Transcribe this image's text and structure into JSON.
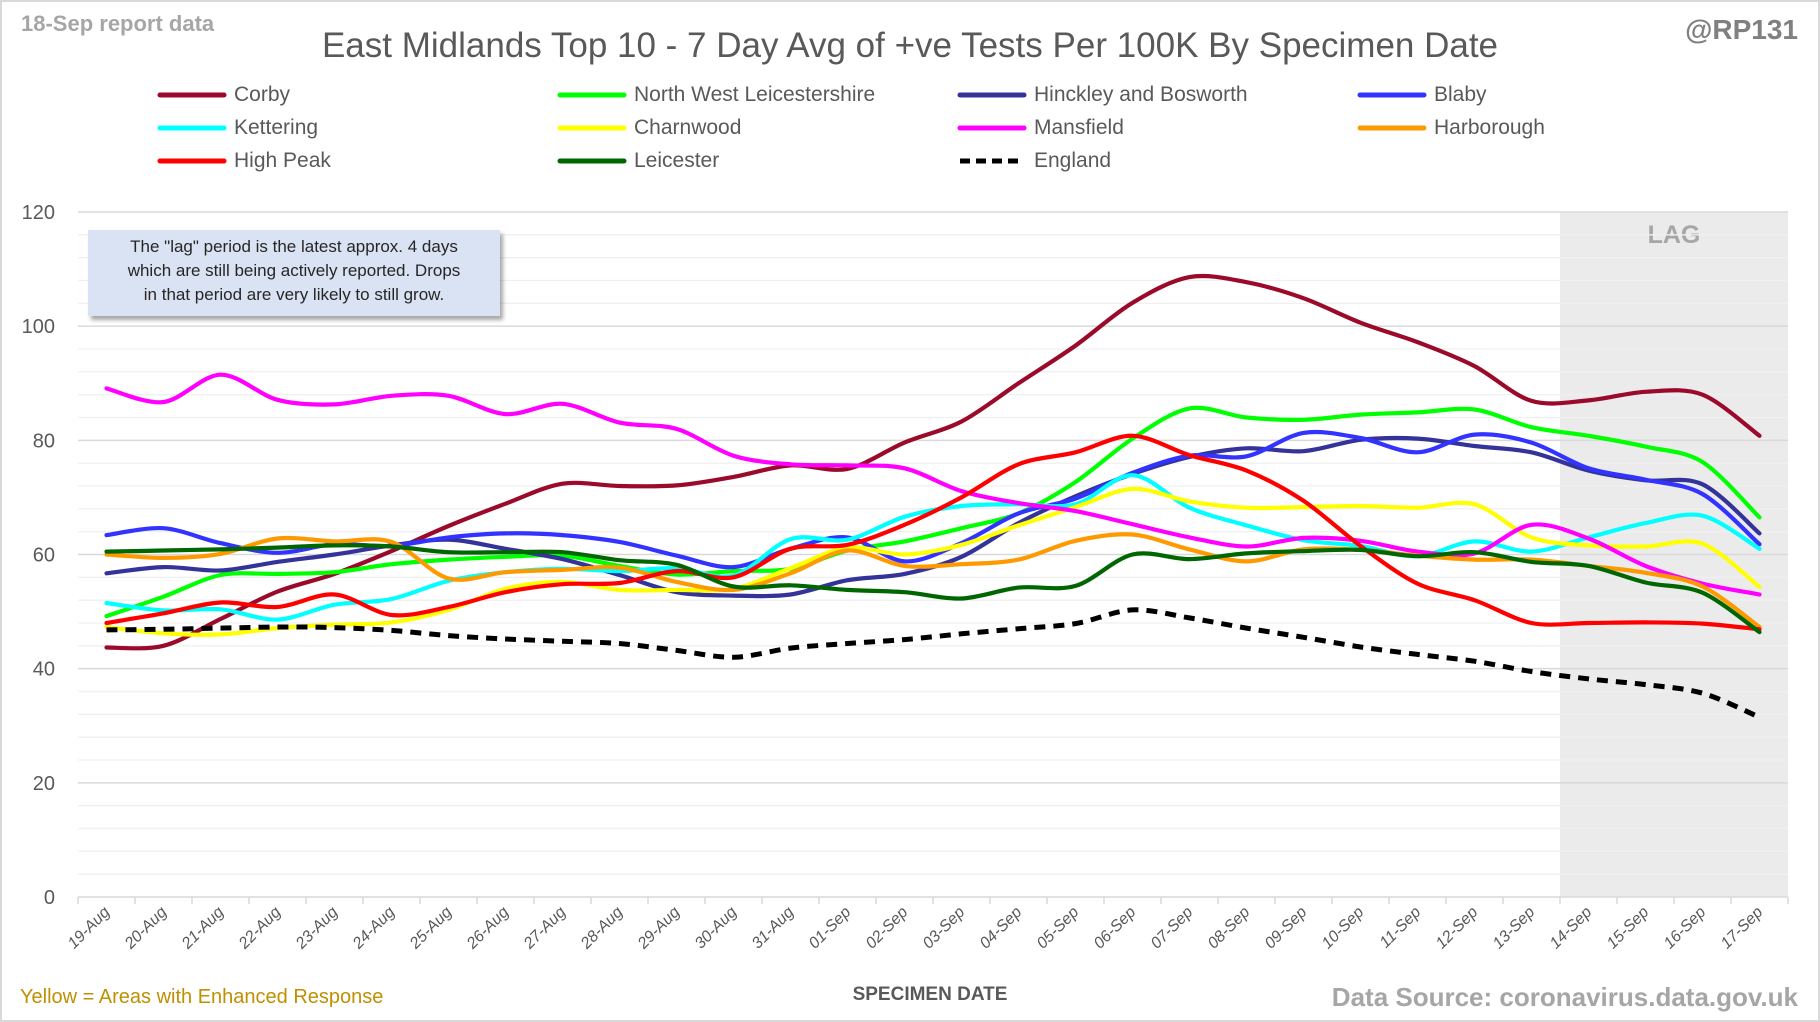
{
  "header": {
    "report_tag": "18-Sep report data",
    "handle": "@RP131"
  },
  "note": {
    "lines": [
      "The \"lag\" period is the latest approx. 4 days",
      "which are still being actively reported. Drops",
      "in that period are very likely to still grow."
    ]
  },
  "footer": {
    "left": "Yellow = Areas with Enhanced Response",
    "right": "Data Source: coronavirus.data.gov.uk"
  },
  "chart_data": {
    "type": "line",
    "title": "East Midlands Top 10 - 7 Day Avg of +ve Tests Per 100K By Specimen Date",
    "xlabel": "SPECIMEN DATE",
    "ylabel": "",
    "ylim": [
      0,
      120
    ],
    "yticks": [
      0,
      20,
      40,
      60,
      80,
      100,
      120
    ],
    "grid": true,
    "legend_position": "top",
    "lag_region": {
      "label": "LAG",
      "from": "14-Sep",
      "to": "17-Sep"
    },
    "categories": [
      "19-Aug",
      "20-Aug",
      "21-Aug",
      "22-Aug",
      "23-Aug",
      "24-Aug",
      "25-Aug",
      "26-Aug",
      "27-Aug",
      "28-Aug",
      "29-Aug",
      "30-Aug",
      "31-Aug",
      "01-Sep",
      "02-Sep",
      "03-Sep",
      "04-Sep",
      "05-Sep",
      "06-Sep",
      "07-Sep",
      "08-Sep",
      "09-Sep",
      "10-Sep",
      "11-Sep",
      "12-Sep",
      "13-Sep",
      "14-Sep",
      "15-Sep",
      "16-Sep",
      "17-Sep"
    ],
    "series": [
      {
        "name": "Corby",
        "color": "#9b0a2a",
        "dashed": false,
        "values": [
          43.7,
          44.0,
          48.7,
          53.5,
          56.6,
          60.6,
          65.0,
          68.9,
          72.4,
          72.0,
          72.1,
          73.6,
          75.6,
          75.0,
          79.6,
          83.3,
          90.0,
          96.6,
          104.1,
          108.6,
          107.7,
          104.9,
          100.6,
          97.2,
          93.0,
          86.9,
          87.0,
          88.5,
          88.0,
          80.8
        ]
      },
      {
        "name": "North West Leicestershire",
        "color": "#00ff00",
        "dashed": false,
        "values": [
          49.2,
          52.6,
          56.4,
          56.6,
          56.9,
          58.3,
          59.1,
          59.6,
          59.8,
          58.0,
          56.5,
          57.1,
          57.5,
          60.7,
          62.3,
          64.6,
          67.2,
          72.7,
          80.3,
          85.6,
          84.0,
          83.6,
          84.5,
          84.9,
          85.4,
          82.3,
          80.8,
          78.9,
          76.2,
          66.5
        ]
      },
      {
        "name": "Hinckley and Bosworth",
        "color": "#333399",
        "dashed": false,
        "values": [
          56.7,
          57.8,
          57.2,
          58.7,
          60.0,
          61.6,
          62.6,
          61.0,
          59.2,
          56.4,
          53.4,
          52.8,
          53.0,
          55.5,
          56.6,
          59.6,
          65.5,
          70.2,
          74.1,
          77.1,
          78.6,
          78.1,
          80.1,
          80.3,
          79.0,
          77.9,
          74.7,
          73.0,
          72.3,
          63.7
        ]
      },
      {
        "name": "Blaby",
        "color": "#3333ff",
        "dashed": false,
        "values": [
          63.4,
          64.6,
          62.0,
          60.3,
          61.8,
          61.5,
          63.0,
          63.7,
          63.4,
          62.2,
          59.8,
          57.8,
          61.0,
          63.0,
          58.8,
          62.0,
          67.2,
          69.8,
          74.3,
          77.3,
          77.2,
          81.3,
          80.4,
          77.9,
          81.0,
          79.6,
          75.1,
          73.1,
          70.6,
          61.8
        ]
      },
      {
        "name": "Kettering",
        "color": "#00ffff",
        "dashed": false,
        "values": [
          51.5,
          50.2,
          50.4,
          48.6,
          51.2,
          52.2,
          55.4,
          56.9,
          57.5,
          57.1,
          57.6,
          56.3,
          62.7,
          62.6,
          66.6,
          68.5,
          68.8,
          68.8,
          73.9,
          68.2,
          65.1,
          62.5,
          61.5,
          59.7,
          62.3,
          60.5,
          63.0,
          65.5,
          66.8,
          61.0
        ]
      },
      {
        "name": "Charnwood",
        "color": "#ffff00",
        "dashed": false,
        "values": [
          47.3,
          46.2,
          46.0,
          47.1,
          47.7,
          48.1,
          50.3,
          54.0,
          55.2,
          53.8,
          53.8,
          54.0,
          57.6,
          61.2,
          60.0,
          61.7,
          65.1,
          68.3,
          71.5,
          69.3,
          68.2,
          68.3,
          68.5,
          68.2,
          68.8,
          63.0,
          61.6,
          61.4,
          61.9,
          54.3
        ]
      },
      {
        "name": "Mansfield",
        "color": "#ff00ff",
        "dashed": false,
        "values": [
          89.1,
          86.7,
          91.5,
          87.1,
          86.3,
          87.8,
          87.8,
          84.6,
          86.4,
          83.1,
          82.0,
          77.3,
          75.8,
          75.6,
          75.1,
          71.1,
          69.0,
          67.6,
          65.3,
          63.0,
          61.4,
          62.9,
          62.4,
          60.5,
          60.2,
          65.2,
          62.8,
          58.0,
          54.9,
          53.0
        ]
      },
      {
        "name": "Harborough",
        "color": "#ff9900",
        "dashed": false,
        "values": [
          60.0,
          59.4,
          60.1,
          62.8,
          62.3,
          62.2,
          55.8,
          56.9,
          57.3,
          57.7,
          55.2,
          53.8,
          56.7,
          60.7,
          58.0,
          58.3,
          59.1,
          62.4,
          63.5,
          60.9,
          58.8,
          60.9,
          60.8,
          59.8,
          59.1,
          59.1,
          58.0,
          56.8,
          54.4,
          47.3
        ]
      },
      {
        "name": "High Peak",
        "color": "#ff0000",
        "dashed": false,
        "values": [
          48.0,
          49.7,
          51.6,
          50.8,
          53.0,
          49.4,
          50.8,
          53.4,
          54.8,
          55.0,
          57.1,
          56.0,
          61.0,
          61.7,
          65.2,
          70.0,
          75.8,
          77.9,
          80.8,
          77.4,
          74.7,
          69.4,
          61.5,
          54.9,
          52.0,
          48.0,
          48.0,
          48.1,
          47.9,
          46.9
        ]
      },
      {
        "name": "Leicester",
        "color": "#006600",
        "dashed": false,
        "values": [
          60.5,
          60.7,
          60.9,
          61.2,
          61.6,
          61.4,
          60.4,
          60.4,
          60.4,
          59.0,
          58.2,
          54.4,
          54.6,
          53.8,
          53.4,
          52.3,
          54.2,
          54.5,
          60.0,
          59.2,
          60.2,
          60.6,
          60.8,
          59.7,
          60.4,
          58.7,
          58.0,
          55.1,
          53.3,
          46.4
        ]
      },
      {
        "name": "England",
        "color": "#000000",
        "dashed": true,
        "values": [
          46.8,
          46.9,
          47.1,
          47.3,
          47.2,
          46.7,
          45.8,
          45.2,
          44.8,
          44.4,
          43.2,
          42.0,
          43.6,
          44.4,
          45.1,
          46.1,
          47.0,
          47.9,
          50.3,
          48.9,
          47.1,
          45.5,
          43.8,
          42.5,
          41.3,
          39.5,
          38.2,
          37.2,
          35.7,
          31.5
        ]
      }
    ]
  }
}
